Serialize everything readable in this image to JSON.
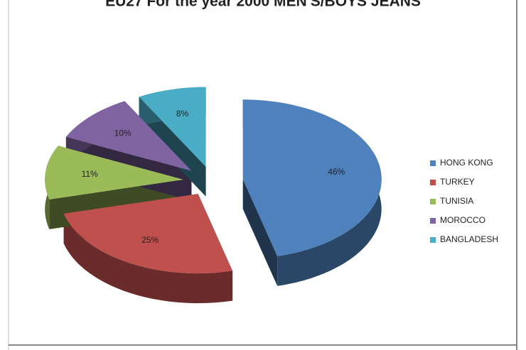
{
  "chart_data": {
    "type": "pie3d",
    "title": "EU27 For the year 2000 MEN'S/BOYS JEANS",
    "categories": [
      "HONG KONG",
      "TURKEY",
      "TUNISIA",
      "MOROCCO",
      "BANGLADESH"
    ],
    "values": [
      46,
      25,
      11,
      10,
      8
    ],
    "value_labels": [
      "46%",
      "25%",
      "11%",
      "10%",
      "8%"
    ],
    "colors": [
      "#4f81bd",
      "#c0504d",
      "#9bbb59",
      "#8064a2",
      "#4bacc6"
    ],
    "legend": "right"
  }
}
